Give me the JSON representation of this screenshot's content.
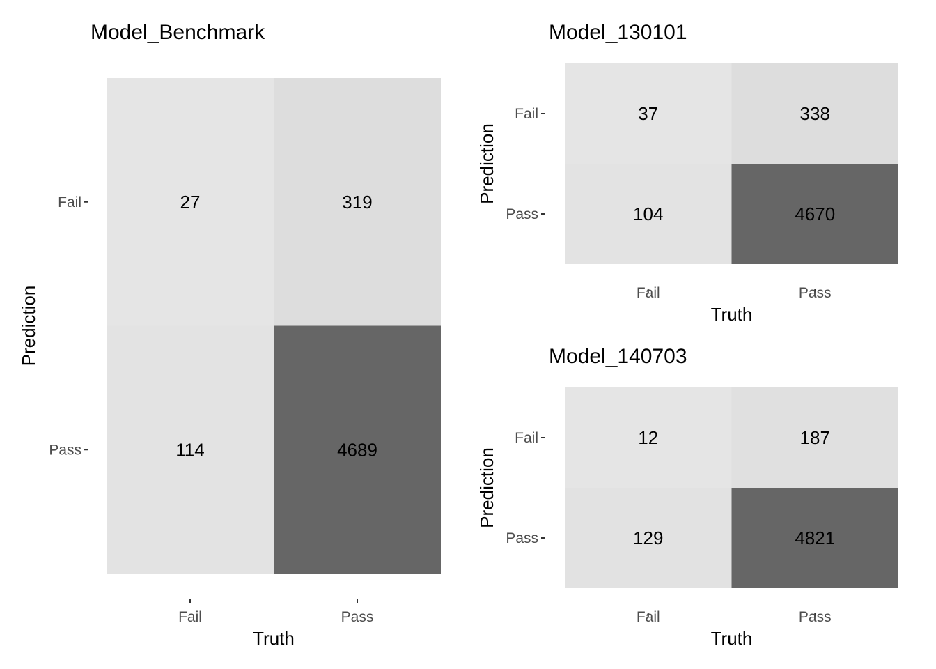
{
  "chart_data": [
    {
      "type": "heatmap",
      "title": "Model_Benchmark",
      "xlabel": "Truth",
      "ylabel": "Prediction",
      "x_categories": [
        "Fail",
        "Pass"
      ],
      "y_categories": [
        "Fail",
        "Pass"
      ],
      "cells": [
        {
          "truth": "Fail",
          "prediction": "Fail",
          "value": 27
        },
        {
          "truth": "Pass",
          "prediction": "Fail",
          "value": 319
        },
        {
          "truth": "Fail",
          "prediction": "Pass",
          "value": 114
        },
        {
          "truth": "Pass",
          "prediction": "Pass",
          "value": 4689
        }
      ],
      "fill_colors": {
        "low": "#e5e5e5",
        "high": "#666666"
      },
      "legend": "none",
      "grid": false
    },
    {
      "type": "heatmap",
      "title": "Model_130101",
      "xlabel": "Truth",
      "ylabel": "Prediction",
      "x_categories": [
        "Fail",
        "Pass"
      ],
      "y_categories": [
        "Fail",
        "Pass"
      ],
      "cells": [
        {
          "truth": "Fail",
          "prediction": "Fail",
          "value": 37
        },
        {
          "truth": "Pass",
          "prediction": "Fail",
          "value": 338
        },
        {
          "truth": "Fail",
          "prediction": "Pass",
          "value": 104
        },
        {
          "truth": "Pass",
          "prediction": "Pass",
          "value": 4670
        }
      ],
      "fill_colors": {
        "low": "#e5e5e5",
        "high": "#666666"
      },
      "legend": "none",
      "grid": false
    },
    {
      "type": "heatmap",
      "title": "Model_140703",
      "xlabel": "Truth",
      "ylabel": "Prediction",
      "x_categories": [
        "Fail",
        "Pass"
      ],
      "y_categories": [
        "Fail",
        "Pass"
      ],
      "cells": [
        {
          "truth": "Fail",
          "prediction": "Fail",
          "value": 12
        },
        {
          "truth": "Pass",
          "prediction": "Fail",
          "value": 187
        },
        {
          "truth": "Fail",
          "prediction": "Pass",
          "value": 129
        },
        {
          "truth": "Pass",
          "prediction": "Pass",
          "value": 4821
        }
      ],
      "fill_colors": {
        "low": "#e5e5e5",
        "high": "#666666"
      },
      "legend": "none",
      "grid": false
    }
  ]
}
